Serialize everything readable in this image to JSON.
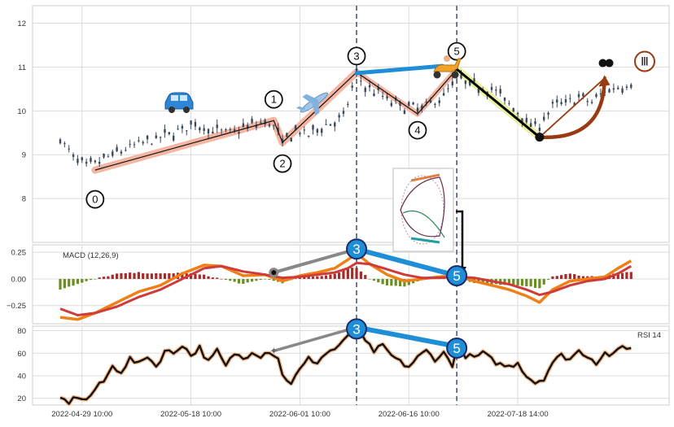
{
  "chart_data": {
    "type": "line",
    "subtype": "candlestick with MACD and RSI subpanels and Elliott wave annotations",
    "grid": true,
    "colors": {
      "candle": "#3b4a5e",
      "wave_fill": "#f4b6a2",
      "wave_line": "#1a1a1a",
      "impulse_bar": "#1e8fd6",
      "dashed_vline": "#4a5d73",
      "macd_line": "#f07f16",
      "signal_line": "#cf3a3a",
      "hist_pos": "#a52a2a",
      "hist_neg": "#6b8e23",
      "rsi_outline": "#f2b88a",
      "rsi_line": "#111111",
      "yellow_band": "#eaf0a0",
      "brown_arrow": "#9a3a12",
      "grey_connector": "#888888",
      "marker_fill": "#1e8fd6",
      "marker_edge": "#1b2a6b"
    },
    "x_tick_labels": [
      "2022-04-29 10:00",
      "2022-05-18 10:00",
      "2022-06-01 10:00",
      "2022-06-16 10:00",
      "2022-07-18 14:00"
    ],
    "x_tick_index": [
      5,
      30,
      55,
      80,
      105
    ],
    "x_range": [
      0,
      133
    ],
    "vertical_dashed_lines_index": [
      68,
      91
    ],
    "price_panel": {
      "ylim": [
        7.0,
        12.4
      ],
      "yticks": [
        8,
        9,
        10,
        11,
        12
      ],
      "wave_points": [
        {
          "label": "0",
          "index": 8,
          "price": 8.65
        },
        {
          "label": "1",
          "index": 49,
          "price": 9.78
        },
        {
          "label": "2",
          "index": 51,
          "price": 9.28
        },
        {
          "label": "3",
          "index": 68,
          "price": 10.88
        },
        {
          "label": "4",
          "index": 82,
          "price": 9.93
        },
        {
          "label": "5",
          "index": 91,
          "price": 10.95
        }
      ],
      "correction_end": {
        "index": 110,
        "price": 9.4
      },
      "projection_end": {
        "index": 126,
        "price": 10.85
      },
      "projection_label": "Ⅲ",
      "close_anchors": [
        [
          0,
          9.35
        ],
        [
          3,
          8.95
        ],
        [
          6,
          8.72
        ],
        [
          9,
          8.85
        ],
        [
          13,
          9.05
        ],
        [
          18,
          9.25
        ],
        [
          22,
          9.35
        ],
        [
          27,
          9.55
        ],
        [
          31,
          9.7
        ],
        [
          35,
          9.55
        ],
        [
          39,
          9.5
        ],
        [
          43,
          9.65
        ],
        [
          47,
          9.75
        ],
        [
          49,
          9.65
        ],
        [
          51,
          9.28
        ],
        [
          54,
          9.55
        ],
        [
          57,
          9.45
        ],
        [
          60,
          9.65
        ],
        [
          63,
          9.75
        ],
        [
          65,
          9.85
        ],
        [
          68,
          10.85
        ],
        [
          70,
          10.55
        ],
        [
          73,
          10.4
        ],
        [
          76,
          10.2
        ],
        [
          79,
          10.1
        ],
        [
          82,
          10.05
        ],
        [
          85,
          10.15
        ],
        [
          88,
          10.35
        ],
        [
          91,
          10.75
        ],
        [
          94,
          10.6
        ],
        [
          97,
          10.55
        ],
        [
          100,
          10.45
        ],
        [
          103,
          10.15
        ],
        [
          106,
          9.9
        ],
        [
          108,
          9.65
        ],
        [
          110,
          9.7
        ],
        [
          113,
          10.1
        ],
        [
          116,
          10.2
        ],
        [
          119,
          10.3
        ],
        [
          122,
          10.2
        ],
        [
          125,
          10.45
        ],
        [
          128,
          10.55
        ],
        [
          130,
          10.6
        ]
      ]
    },
    "macd_panel": {
      "title": "MACD (12,26,9)",
      "ylim": [
        -0.42,
        0.32
      ],
      "yticks": [
        0.25,
        0.0,
        -0.25
      ],
      "ytick_labels": [
        "0.25",
        "0.00",
        "−0.25"
      ],
      "macd_anchors": [
        [
          0,
          -0.36
        ],
        [
          4,
          -0.38
        ],
        [
          8,
          -0.32
        ],
        [
          13,
          -0.22
        ],
        [
          18,
          -0.12
        ],
        [
          23,
          -0.06
        ],
        [
          28,
          0.05
        ],
        [
          33,
          0.13
        ],
        [
          37,
          0.12
        ],
        [
          42,
          0.03
        ],
        [
          47,
          0.04
        ],
        [
          51,
          -0.02
        ],
        [
          55,
          0.03
        ],
        [
          59,
          0.06
        ],
        [
          63,
          0.1
        ],
        [
          66,
          0.18
        ],
        [
          68,
          0.24
        ],
        [
          71,
          0.14
        ],
        [
          75,
          0.04
        ],
        [
          79,
          -0.02
        ],
        [
          83,
          0.0
        ],
        [
          87,
          0.02
        ],
        [
          91,
          0.03
        ],
        [
          95,
          -0.02
        ],
        [
          99,
          -0.06
        ],
        [
          103,
          -0.1
        ],
        [
          107,
          -0.16
        ],
        [
          110,
          -0.22
        ],
        [
          113,
          -0.1
        ],
        [
          117,
          -0.02
        ],
        [
          121,
          0.0
        ],
        [
          125,
          0.02
        ],
        [
          128,
          0.1
        ],
        [
          131,
          0.17
        ]
      ],
      "signal_anchors": [
        [
          0,
          -0.28
        ],
        [
          4,
          -0.34
        ],
        [
          8,
          -0.32
        ],
        [
          13,
          -0.26
        ],
        [
          18,
          -0.17
        ],
        [
          23,
          -0.1
        ],
        [
          28,
          0.0
        ],
        [
          33,
          0.1
        ],
        [
          37,
          0.12
        ],
        [
          42,
          0.07
        ],
        [
          47,
          0.04
        ],
        [
          51,
          0.01
        ],
        [
          55,
          0.02
        ],
        [
          59,
          0.04
        ],
        [
          63,
          0.06
        ],
        [
          66,
          0.1
        ],
        [
          68,
          0.15
        ],
        [
          71,
          0.14
        ],
        [
          75,
          0.09
        ],
        [
          79,
          0.04
        ],
        [
          83,
          0.01
        ],
        [
          87,
          0.01
        ],
        [
          91,
          0.02
        ],
        [
          95,
          0.01
        ],
        [
          99,
          -0.02
        ],
        [
          103,
          -0.05
        ],
        [
          107,
          -0.1
        ],
        [
          110,
          -0.15
        ],
        [
          113,
          -0.12
        ],
        [
          117,
          -0.06
        ],
        [
          121,
          -0.02
        ],
        [
          125,
          0.0
        ],
        [
          128,
          0.05
        ],
        [
          131,
          0.12
        ]
      ],
      "wave_points": [
        {
          "label": "3",
          "index": 68,
          "value": 0.28
        },
        {
          "label": "5",
          "index": 91,
          "value": 0.03
        }
      ],
      "grey_start": {
        "index": 49,
        "value": 0.06
      }
    },
    "rsi_panel": {
      "label": "RSI 14",
      "ylim": [
        14,
        84
      ],
      "yticks": [
        80,
        60,
        40,
        20
      ],
      "rsi_anchors": [
        [
          0,
          20
        ],
        [
          2,
          16
        ],
        [
          4,
          22
        ],
        [
          6,
          18
        ],
        [
          8,
          28
        ],
        [
          10,
          35
        ],
        [
          12,
          48
        ],
        [
          14,
          44
        ],
        [
          16,
          55
        ],
        [
          18,
          50
        ],
        [
          20,
          58
        ],
        [
          22,
          48
        ],
        [
          24,
          62
        ],
        [
          26,
          60
        ],
        [
          28,
          68
        ],
        [
          30,
          58
        ],
        [
          32,
          65
        ],
        [
          34,
          52
        ],
        [
          36,
          62
        ],
        [
          38,
          48
        ],
        [
          40,
          60
        ],
        [
          42,
          55
        ],
        [
          44,
          62
        ],
        [
          46,
          58
        ],
        [
          48,
          62
        ],
        [
          50,
          56
        ],
        [
          51,
          40
        ],
        [
          53,
          34
        ],
        [
          55,
          45
        ],
        [
          57,
          55
        ],
        [
          59,
          52
        ],
        [
          61,
          60
        ],
        [
          63,
          64
        ],
        [
          65,
          70
        ],
        [
          67,
          78
        ],
        [
          68,
          82
        ],
        [
          70,
          70
        ],
        [
          72,
          62
        ],
        [
          74,
          66
        ],
        [
          76,
          58
        ],
        [
          78,
          52
        ],
        [
          80,
          48
        ],
        [
          82,
          56
        ],
        [
          84,
          62
        ],
        [
          86,
          55
        ],
        [
          88,
          60
        ],
        [
          90,
          50
        ],
        [
          91,
          65
        ],
        [
          93,
          58
        ],
        [
          95,
          56
        ],
        [
          97,
          60
        ],
        [
          99,
          54
        ],
        [
          101,
          50
        ],
        [
          103,
          48
        ],
        [
          105,
          52
        ],
        [
          107,
          40
        ],
        [
          109,
          34
        ],
        [
          111,
          38
        ],
        [
          113,
          52
        ],
        [
          115,
          58
        ],
        [
          117,
          55
        ],
        [
          119,
          62
        ],
        [
          121,
          58
        ],
        [
          123,
          52
        ],
        [
          125,
          60
        ],
        [
          127,
          58
        ],
        [
          129,
          66
        ],
        [
          131,
          65
        ]
      ],
      "wave_points": [
        {
          "label": "3",
          "index": 68,
          "value": 83
        },
        {
          "label": "5",
          "index": 91,
          "value": 66
        }
      ],
      "grey_start": {
        "index": 49,
        "value": 62
      }
    }
  }
}
